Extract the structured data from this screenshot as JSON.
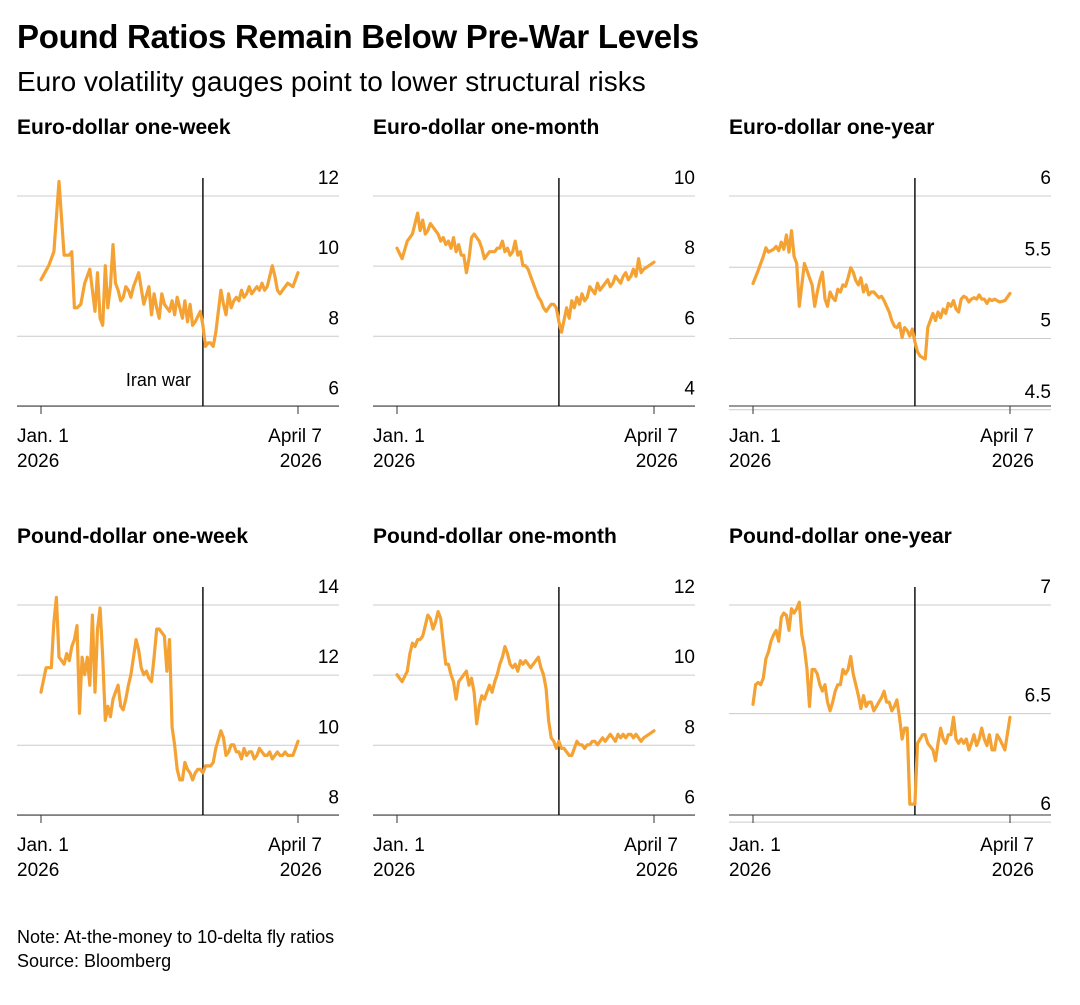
{
  "header": {
    "title": "Pound Ratios Remain Below Pre-War Levels",
    "subtitle": "Euro volatility gauges point to lower structural risks"
  },
  "footer": {
    "note": "Note: At-the-money to 10-delta fly ratios",
    "source": "Source: Bloomberg"
  },
  "colors": {
    "line": "#f5a234",
    "grid": "#cccccc",
    "axis": "#333333",
    "event": "#000000"
  },
  "chart_data": [
    {
      "type": "line",
      "title": "Euro-dollar one-week",
      "x_range": [
        0,
        1
      ],
      "x_labels": [
        [
          "Jan. 1",
          "2026"
        ],
        [
          "April 7",
          "2026"
        ]
      ],
      "ylim": [
        5.5,
        12
      ],
      "yticks": [
        12,
        10,
        8,
        6
      ],
      "event": {
        "x": 0.63,
        "label": "Iran war"
      },
      "x": [
        0,
        0.03,
        0.05,
        0.07,
        0.09,
        0.11,
        0.12,
        0.13,
        0.14,
        0.155,
        0.17,
        0.19,
        0.21,
        0.22,
        0.23,
        0.24,
        0.25,
        0.26,
        0.27,
        0.28,
        0.29,
        0.3,
        0.31,
        0.32,
        0.33,
        0.34,
        0.35,
        0.36,
        0.38,
        0.4,
        0.42,
        0.43,
        0.44,
        0.45,
        0.46,
        0.47,
        0.48,
        0.49,
        0.5,
        0.51,
        0.52,
        0.53,
        0.54,
        0.55,
        0.56,
        0.57,
        0.58,
        0.59,
        0.6,
        0.62,
        0.63,
        0.64,
        0.65,
        0.66,
        0.67,
        0.68,
        0.7,
        0.71,
        0.72,
        0.73,
        0.74,
        0.75,
        0.76,
        0.77,
        0.78,
        0.79,
        0.8,
        0.81,
        0.82,
        0.83,
        0.84,
        0.85,
        0.86,
        0.87,
        0.88,
        0.9,
        0.91,
        0.92,
        0.93,
        0.94,
        0.96,
        0.98,
        1.0
      ],
      "values": [
        9.1,
        9.5,
        9.9,
        11.9,
        9.8,
        9.8,
        9.9,
        8.3,
        8.3,
        8.4,
        9.0,
        9.4,
        8.2,
        9.3,
        8.0,
        7.8,
        9.5,
        8.3,
        8.9,
        10.1,
        9.0,
        8.8,
        8.5,
        8.6,
        8.9,
        8.8,
        8.6,
        8.9,
        9.3,
        8.4,
        8.9,
        8.1,
        8.7,
        8.3,
        8.0,
        8.7,
        8.4,
        8.3,
        8.2,
        8.5,
        8.1,
        8.6,
        8.3,
        8.0,
        8.5,
        7.9,
        8.4,
        7.8,
        7.9,
        8.2,
        7.8,
        7.2,
        7.3,
        7.3,
        7.2,
        7.6,
        8.8,
        8.4,
        8.1,
        8.7,
        8.3,
        8.5,
        8.6,
        8.5,
        8.8,
        8.6,
        8.7,
        8.9,
        8.7,
        8.8,
        8.9,
        8.8,
        9.0,
        8.8,
        8.9,
        9.5,
        9.2,
        8.8,
        8.7,
        8.8,
        9.0,
        8.9,
        9.3
      ]
    },
    {
      "type": "line",
      "title": "Euro-dollar one-month",
      "x_range": [
        0,
        1
      ],
      "x_labels": [
        [
          "Jan. 1",
          "2026"
        ],
        [
          "April 7",
          "2026"
        ]
      ],
      "ylim": [
        3.5,
        10
      ],
      "yticks": [
        10,
        8,
        6,
        4
      ],
      "event": {
        "x": 0.63,
        "label": ""
      },
      "x": [
        0,
        0.02,
        0.04,
        0.06,
        0.08,
        0.09,
        0.1,
        0.11,
        0.12,
        0.13,
        0.14,
        0.15,
        0.16,
        0.17,
        0.18,
        0.19,
        0.2,
        0.21,
        0.22,
        0.23,
        0.24,
        0.25,
        0.26,
        0.27,
        0.28,
        0.29,
        0.3,
        0.31,
        0.32,
        0.33,
        0.34,
        0.35,
        0.36,
        0.37,
        0.38,
        0.39,
        0.4,
        0.41,
        0.42,
        0.43,
        0.44,
        0.45,
        0.46,
        0.47,
        0.48,
        0.49,
        0.5,
        0.51,
        0.52,
        0.53,
        0.54,
        0.55,
        0.56,
        0.57,
        0.58,
        0.59,
        0.6,
        0.61,
        0.62,
        0.63,
        0.64,
        0.66,
        0.67,
        0.68,
        0.69,
        0.7,
        0.71,
        0.72,
        0.73,
        0.74,
        0.75,
        0.76,
        0.77,
        0.78,
        0.79,
        0.8,
        0.81,
        0.82,
        0.83,
        0.84,
        0.85,
        0.86,
        0.87,
        0.88,
        0.89,
        0.9,
        0.91,
        0.92,
        0.93,
        0.94,
        0.95,
        0.96,
        0.98,
        1.0
      ],
      "values": [
        8.0,
        7.7,
        8.2,
        8.4,
        9.0,
        8.5,
        8.8,
        8.4,
        8.5,
        8.7,
        8.6,
        8.5,
        8.4,
        8.2,
        8.3,
        8.1,
        8.2,
        8.0,
        8.3,
        7.9,
        8.1,
        7.8,
        7.8,
        7.3,
        7.7,
        8.3,
        8.4,
        8.3,
        8.2,
        8.0,
        7.7,
        7.8,
        7.9,
        7.9,
        7.9,
        8.0,
        8.0,
        8.2,
        7.9,
        8.0,
        7.8,
        7.9,
        8.2,
        7.8,
        7.9,
        7.5,
        7.5,
        7.4,
        7.2,
        7.0,
        6.8,
        6.6,
        6.5,
        6.3,
        6.2,
        6.3,
        6.4,
        6.4,
        6.3,
        5.9,
        5.6,
        6.3,
        6.0,
        6.5,
        6.3,
        6.6,
        6.4,
        6.7,
        6.5,
        6.6,
        6.9,
        6.8,
        6.7,
        7.0,
        6.8,
        6.9,
        7.0,
        7.1,
        6.9,
        7.0,
        7.2,
        7.1,
        7.0,
        7.2,
        7.3,
        7.1,
        7.2,
        7.4,
        7.2,
        7.7,
        7.3,
        7.4,
        7.5,
        7.6
      ]
    },
    {
      "type": "line",
      "title": "Euro-dollar one-year",
      "x_range": [
        0,
        1
      ],
      "x_labels": [
        [
          "Jan. 1",
          "2026"
        ],
        [
          "April 7",
          "2026"
        ]
      ],
      "ylim": [
        4.4,
        6.0
      ],
      "yticks": [
        6.0,
        5.5,
        5.0,
        4.5
      ],
      "event": {
        "x": 0.63,
        "label": ""
      },
      "x": [
        0,
        0.02,
        0.04,
        0.05,
        0.06,
        0.07,
        0.08,
        0.09,
        0.1,
        0.11,
        0.12,
        0.13,
        0.14,
        0.15,
        0.16,
        0.17,
        0.18,
        0.19,
        0.2,
        0.21,
        0.22,
        0.23,
        0.24,
        0.25,
        0.26,
        0.27,
        0.28,
        0.29,
        0.3,
        0.31,
        0.32,
        0.33,
        0.34,
        0.35,
        0.36,
        0.37,
        0.38,
        0.39,
        0.4,
        0.41,
        0.42,
        0.43,
        0.44,
        0.45,
        0.46,
        0.47,
        0.48,
        0.49,
        0.5,
        0.51,
        0.52,
        0.53,
        0.54,
        0.55,
        0.56,
        0.57,
        0.58,
        0.59,
        0.6,
        0.61,
        0.62,
        0.63,
        0.64,
        0.65,
        0.66,
        0.67,
        0.68,
        0.7,
        0.71,
        0.72,
        0.73,
        0.74,
        0.75,
        0.76,
        0.77,
        0.78,
        0.79,
        0.8,
        0.81,
        0.82,
        0.83,
        0.84,
        0.85,
        0.86,
        0.87,
        0.88,
        0.89,
        0.9,
        0.91,
        0.92,
        0.93,
        0.94,
        0.95,
        0.96,
        0.98,
        1.0
      ],
      "values": [
        5.26,
        5.35,
        5.45,
        5.51,
        5.48,
        5.49,
        5.5,
        5.52,
        5.49,
        5.55,
        5.5,
        5.6,
        5.48,
        5.63,
        5.45,
        5.4,
        5.1,
        5.25,
        5.4,
        5.35,
        5.3,
        5.25,
        5.1,
        5.2,
        5.28,
        5.34,
        5.15,
        5.1,
        5.2,
        5.16,
        5.14,
        5.22,
        5.2,
        5.25,
        5.24,
        5.3,
        5.37,
        5.34,
        5.28,
        5.25,
        5.3,
        5.2,
        5.25,
        5.18,
        5.2,
        5.2,
        5.18,
        5.16,
        5.17,
        5.14,
        5.1,
        5.06,
        5.0,
        4.96,
        4.95,
        4.98,
        4.88,
        4.95,
        4.93,
        4.89,
        4.94,
        4.85,
        4.78,
        4.75,
        4.74,
        4.73,
        4.95,
        5.05,
        5.0,
        5.06,
        5.02,
        5.08,
        5.05,
        5.12,
        5.1,
        5.14,
        5.08,
        5.06,
        5.15,
        5.17,
        5.16,
        5.13,
        5.15,
        5.16,
        5.15,
        5.18,
        5.15,
        5.15,
        5.12,
        5.15,
        5.14,
        5.15,
        5.14,
        5.13,
        5.14,
        5.19
      ]
    },
    {
      "type": "line",
      "title": "Pound-dollar one-week",
      "x_range": [
        0,
        1
      ],
      "x_labels": [
        [
          "Jan. 1",
          "2026"
        ],
        [
          "April 7",
          "2026"
        ]
      ],
      "ylim": [
        7.5,
        14
      ],
      "yticks": [
        14,
        12,
        10,
        8
      ],
      "event": {
        "x": 0.63,
        "label": ""
      },
      "x": [
        0,
        0.02,
        0.04,
        0.05,
        0.06,
        0.07,
        0.08,
        0.09,
        0.1,
        0.11,
        0.12,
        0.13,
        0.14,
        0.15,
        0.16,
        0.17,
        0.18,
        0.19,
        0.2,
        0.21,
        0.22,
        0.23,
        0.24,
        0.25,
        0.26,
        0.27,
        0.28,
        0.29,
        0.3,
        0.31,
        0.32,
        0.33,
        0.34,
        0.35,
        0.36,
        0.37,
        0.38,
        0.39,
        0.4,
        0.41,
        0.42,
        0.43,
        0.44,
        0.45,
        0.46,
        0.47,
        0.48,
        0.49,
        0.5,
        0.51,
        0.52,
        0.53,
        0.54,
        0.55,
        0.56,
        0.57,
        0.58,
        0.59,
        0.6,
        0.61,
        0.62,
        0.63,
        0.64,
        0.65,
        0.66,
        0.67,
        0.68,
        0.7,
        0.71,
        0.72,
        0.73,
        0.74,
        0.75,
        0.76,
        0.77,
        0.78,
        0.79,
        0.8,
        0.81,
        0.82,
        0.83,
        0.84,
        0.85,
        0.86,
        0.87,
        0.88,
        0.89,
        0.9,
        0.91,
        0.92,
        0.93,
        0.94,
        0.95,
        0.96,
        0.98,
        1.0
      ],
      "values": [
        11.0,
        11.7,
        11.7,
        13.0,
        13.7,
        12.0,
        11.9,
        11.8,
        12.1,
        11.9,
        12.3,
        12.5,
        12.9,
        10.4,
        12.0,
        11.5,
        12.0,
        11.2,
        13.2,
        11.0,
        12.8,
        13.4,
        12.0,
        10.2,
        10.6,
        10.3,
        10.8,
        11.0,
        11.2,
        10.6,
        10.5,
        10.8,
        11.2,
        11.5,
        12.0,
        12.5,
        12.2,
        11.7,
        11.5,
        11.6,
        11.4,
        11.3,
        12.0,
        12.8,
        12.8,
        12.7,
        12.6,
        11.6,
        12.5,
        10.0,
        9.5,
        8.8,
        8.5,
        8.5,
        9.0,
        8.8,
        8.7,
        8.5,
        8.7,
        8.8,
        8.8,
        8.7,
        8.9,
        8.9,
        8.9,
        9.0,
        9.4,
        9.9,
        9.7,
        9.2,
        9.3,
        9.5,
        9.5,
        9.3,
        9.3,
        9.1,
        9.4,
        9.2,
        9.3,
        9.3,
        9.1,
        9.2,
        9.4,
        9.3,
        9.2,
        9.2,
        9.3,
        9.1,
        9.2,
        9.3,
        9.2,
        9.2,
        9.3,
        9.2,
        9.2,
        9.6
      ]
    },
    {
      "type": "line",
      "title": "Pound-dollar one-month",
      "x_range": [
        0,
        1
      ],
      "x_labels": [
        [
          "Jan. 1",
          "2026"
        ],
        [
          "April 7",
          "2026"
        ]
      ],
      "ylim": [
        5.5,
        12
      ],
      "yticks": [
        12,
        10,
        8,
        6
      ],
      "event": {
        "x": 0.63,
        "label": ""
      },
      "x": [
        0,
        0.02,
        0.04,
        0.05,
        0.06,
        0.07,
        0.08,
        0.09,
        0.1,
        0.11,
        0.12,
        0.13,
        0.14,
        0.15,
        0.16,
        0.17,
        0.18,
        0.19,
        0.2,
        0.21,
        0.22,
        0.23,
        0.24,
        0.25,
        0.26,
        0.27,
        0.28,
        0.29,
        0.3,
        0.31,
        0.32,
        0.33,
        0.34,
        0.35,
        0.36,
        0.37,
        0.38,
        0.39,
        0.4,
        0.41,
        0.42,
        0.43,
        0.44,
        0.45,
        0.46,
        0.47,
        0.48,
        0.49,
        0.5,
        0.51,
        0.52,
        0.53,
        0.54,
        0.55,
        0.56,
        0.57,
        0.58,
        0.59,
        0.6,
        0.61,
        0.62,
        0.63,
        0.64,
        0.65,
        0.66,
        0.67,
        0.68,
        0.7,
        0.71,
        0.72,
        0.73,
        0.74,
        0.75,
        0.76,
        0.77,
        0.78,
        0.79,
        0.8,
        0.81,
        0.82,
        0.83,
        0.84,
        0.85,
        0.86,
        0.87,
        0.88,
        0.89,
        0.9,
        0.91,
        0.92,
        0.93,
        0.94,
        0.95,
        0.96,
        0.98,
        1.0
      ],
      "values": [
        9.5,
        9.3,
        9.6,
        10.1,
        10.4,
        10.3,
        10.5,
        10.5,
        10.6,
        10.9,
        11.2,
        11.1,
        10.8,
        11.0,
        11.3,
        11.1,
        10.4,
        9.8,
        9.8,
        9.5,
        9.3,
        8.8,
        9.3,
        9.4,
        9.5,
        9.6,
        9.2,
        9.4,
        9.0,
        8.1,
        8.6,
        8.9,
        8.8,
        9.0,
        9.2,
        9.0,
        9.3,
        9.5,
        9.8,
        10.0,
        10.3,
        10.1,
        9.8,
        9.7,
        9.8,
        9.6,
        9.9,
        9.8,
        9.9,
        9.8,
        9.7,
        9.8,
        9.9,
        10.0,
        9.7,
        9.5,
        9.1,
        8.2,
        7.7,
        7.6,
        7.4,
        7.6,
        7.4,
        7.4,
        7.3,
        7.2,
        7.2,
        7.6,
        7.5,
        7.5,
        7.4,
        7.5,
        7.5,
        7.6,
        7.6,
        7.5,
        7.6,
        7.7,
        7.6,
        7.7,
        7.8,
        7.7,
        7.6,
        7.8,
        7.7,
        7.8,
        7.7,
        7.8,
        7.8,
        7.7,
        7.8,
        7.7,
        7.6,
        7.7,
        7.8,
        7.9
      ]
    },
    {
      "type": "line",
      "title": "Pound-dollar one-year",
      "x_range": [
        0,
        1
      ],
      "x_labels": [
        [
          "Jan. 1",
          "2026"
        ],
        [
          "April 7",
          "2026"
        ]
      ],
      "ylim": [
        5.95,
        7.0
      ],
      "yticks": [
        7.0,
        6.5,
        6.0
      ],
      "event": {
        "x": 0.63,
        "label": ""
      },
      "x": [
        0,
        0.01,
        0.02,
        0.03,
        0.04,
        0.05,
        0.06,
        0.07,
        0.08,
        0.09,
        0.1,
        0.11,
        0.12,
        0.13,
        0.14,
        0.15,
        0.16,
        0.17,
        0.18,
        0.19,
        0.2,
        0.21,
        0.22,
        0.23,
        0.24,
        0.25,
        0.26,
        0.27,
        0.28,
        0.29,
        0.3,
        0.31,
        0.32,
        0.33,
        0.34,
        0.35,
        0.36,
        0.37,
        0.38,
        0.39,
        0.4,
        0.41,
        0.42,
        0.43,
        0.44,
        0.45,
        0.46,
        0.47,
        0.48,
        0.49,
        0.5,
        0.51,
        0.52,
        0.53,
        0.54,
        0.55,
        0.56,
        0.57,
        0.58,
        0.59,
        0.6,
        0.61,
        0.62,
        0.63,
        0.64,
        0.65,
        0.66,
        0.67,
        0.68,
        0.7,
        0.71,
        0.72,
        0.73,
        0.74,
        0.75,
        0.76,
        0.77,
        0.78,
        0.79,
        0.8,
        0.81,
        0.82,
        0.83,
        0.84,
        0.85,
        0.86,
        0.87,
        0.88,
        0.89,
        0.9,
        0.91,
        0.92,
        0.93,
        0.94,
        0.95,
        0.96,
        0.98,
        1.0
      ],
      "values": [
        6.46,
        6.55,
        6.56,
        6.55,
        6.58,
        6.67,
        6.7,
        6.75,
        6.78,
        6.8,
        6.75,
        6.86,
        6.88,
        6.87,
        6.8,
        6.9,
        6.88,
        6.9,
        6.93,
        6.78,
        6.72,
        6.62,
        6.45,
        6.62,
        6.62,
        6.6,
        6.55,
        6.52,
        6.55,
        6.47,
        6.43,
        6.47,
        6.52,
        6.55,
        6.55,
        6.62,
        6.6,
        6.62,
        6.68,
        6.6,
        6.55,
        6.5,
        6.44,
        6.5,
        6.45,
        6.47,
        6.47,
        6.43,
        6.45,
        6.47,
        6.49,
        6.52,
        6.47,
        6.47,
        6.43,
        6.45,
        6.48,
        6.4,
        6.3,
        6.35,
        6.35,
        6.0,
        6.0,
        6.0,
        6.28,
        6.3,
        6.32,
        6.32,
        6.28,
        6.25,
        6.2,
        6.28,
        6.35,
        6.3,
        6.28,
        6.32,
        6.32,
        6.4,
        6.3,
        6.28,
        6.3,
        6.28,
        6.3,
        6.25,
        6.28,
        6.32,
        6.27,
        6.3,
        6.35,
        6.3,
        6.27,
        6.32,
        6.25,
        6.25,
        6.32,
        6.3,
        6.25,
        6.4
      ]
    }
  ]
}
